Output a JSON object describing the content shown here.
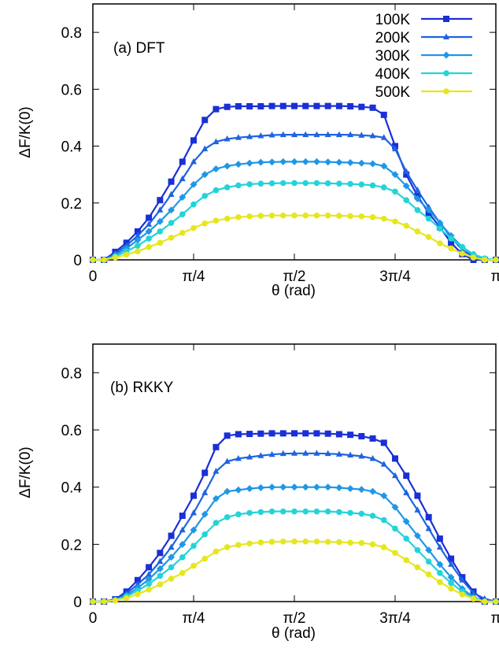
{
  "chart_data": [
    {
      "type": "line",
      "annotation": "(a) DFT",
      "xlabel": "θ (rad)",
      "ylabel": "ΔF/K(0)",
      "xlim": [
        0,
        3.14159
      ],
      "ylim": [
        0,
        0.9
      ],
      "x_ticks": [
        {
          "value": 0,
          "label": "0"
        },
        {
          "value": 0.7854,
          "label": "π/4"
        },
        {
          "value": 1.5708,
          "label": "π/2"
        },
        {
          "value": 2.3562,
          "label": "3π/4"
        },
        {
          "value": 3.1416,
          "label": "π"
        }
      ],
      "y_ticks": [
        {
          "value": 0,
          "label": "0"
        },
        {
          "value": 0.2,
          "label": "0.2"
        },
        {
          "value": 0.4,
          "label": "0.4"
        },
        {
          "value": 0.6,
          "label": "0.6"
        },
        {
          "value": 0.8,
          "label": "0.8"
        }
      ],
      "grid": false,
      "legend_position": "top-right",
      "series": [
        {
          "name": "100K",
          "color": "#1a2fd6",
          "marker": "square",
          "x": [
            0,
            0.0873,
            0.1745,
            0.2618,
            0.3491,
            0.4363,
            0.5236,
            0.6109,
            0.6981,
            0.7854,
            0.8727,
            0.9599,
            1.0472,
            1.1345,
            1.2217,
            1.309,
            1.3963,
            1.4835,
            1.5708,
            1.6581,
            1.7453,
            1.8326,
            1.9199,
            2.0071,
            2.0944,
            2.1817,
            2.2689,
            2.3562,
            2.4435,
            2.5307,
            2.618,
            2.7053,
            2.7925,
            2.8798,
            2.9671,
            3.0543,
            3.1416
          ],
          "y": [
            0,
            0,
            0.028,
            0.06,
            0.1,
            0.148,
            0.21,
            0.275,
            0.345,
            0.42,
            0.492,
            0.53,
            0.538,
            0.54,
            0.54,
            0.54,
            0.541,
            0.541,
            0.541,
            0.541,
            0.541,
            0.541,
            0.541,
            0.54,
            0.538,
            0.535,
            0.51,
            0.4,
            0.3,
            0.225,
            0.165,
            0.115,
            0.06,
            0.02,
            0,
            0,
            0
          ]
        },
        {
          "name": "200K",
          "color": "#1e63e0",
          "marker": "triangle",
          "x": [
            0,
            0.0873,
            0.1745,
            0.2618,
            0.3491,
            0.4363,
            0.5236,
            0.6109,
            0.6981,
            0.7854,
            0.8727,
            0.9599,
            1.0472,
            1.1345,
            1.2217,
            1.309,
            1.3963,
            1.4835,
            1.5708,
            1.6581,
            1.7453,
            1.8326,
            1.9199,
            2.0071,
            2.0944,
            2.1817,
            2.2689,
            2.3562,
            2.4435,
            2.5307,
            2.618,
            2.7053,
            2.7925,
            2.8798,
            2.9671,
            3.0543,
            3.1416
          ],
          "y": [
            0,
            0,
            0.022,
            0.05,
            0.085,
            0.125,
            0.175,
            0.23,
            0.285,
            0.345,
            0.39,
            0.415,
            0.425,
            0.43,
            0.433,
            0.436,
            0.439,
            0.44,
            0.44,
            0.44,
            0.44,
            0.44,
            0.44,
            0.44,
            0.438,
            0.436,
            0.43,
            0.39,
            0.31,
            0.245,
            0.185,
            0.13,
            0.08,
            0.035,
            0.01,
            0,
            0
          ]
        },
        {
          "name": "300K",
          "color": "#1f97e6",
          "marker": "diamond",
          "x": [
            0,
            0.0873,
            0.1745,
            0.2618,
            0.3491,
            0.4363,
            0.5236,
            0.6109,
            0.6981,
            0.7854,
            0.8727,
            0.9599,
            1.0472,
            1.1345,
            1.2217,
            1.309,
            1.3963,
            1.4835,
            1.5708,
            1.6581,
            1.7453,
            1.8326,
            1.9199,
            2.0071,
            2.0944,
            2.1817,
            2.2689,
            2.3562,
            2.4435,
            2.5307,
            2.618,
            2.7053,
            2.7925,
            2.8798,
            2.9671,
            3.0543,
            3.1416
          ],
          "y": [
            0,
            0,
            0.017,
            0.04,
            0.07,
            0.1,
            0.135,
            0.175,
            0.22,
            0.265,
            0.3,
            0.32,
            0.33,
            0.336,
            0.34,
            0.343,
            0.344,
            0.345,
            0.345,
            0.345,
            0.345,
            0.344,
            0.343,
            0.342,
            0.34,
            0.338,
            0.33,
            0.3,
            0.26,
            0.215,
            0.175,
            0.13,
            0.085,
            0.045,
            0.015,
            0,
            0
          ]
        },
        {
          "name": "400K",
          "color": "#24d3d8",
          "marker": "circle",
          "x": [
            0,
            0.0873,
            0.1745,
            0.2618,
            0.3491,
            0.4363,
            0.5236,
            0.6109,
            0.6981,
            0.7854,
            0.8727,
            0.9599,
            1.0472,
            1.1345,
            1.2217,
            1.309,
            1.3963,
            1.4835,
            1.5708,
            1.6581,
            1.7453,
            1.8326,
            1.9199,
            2.0071,
            2.0944,
            2.1817,
            2.2689,
            2.3562,
            2.4435,
            2.5307,
            2.618,
            2.7053,
            2.7925,
            2.8798,
            2.9671,
            3.0543,
            3.1416
          ],
          "y": [
            0,
            0,
            0.012,
            0.03,
            0.05,
            0.075,
            0.1,
            0.13,
            0.16,
            0.195,
            0.225,
            0.245,
            0.255,
            0.262,
            0.266,
            0.268,
            0.269,
            0.27,
            0.27,
            0.27,
            0.27,
            0.269,
            0.268,
            0.267,
            0.265,
            0.262,
            0.255,
            0.24,
            0.21,
            0.175,
            0.145,
            0.11,
            0.075,
            0.045,
            0.02,
            0.005,
            0
          ]
        },
        {
          "name": "500K",
          "color": "#e6e620",
          "marker": "circle",
          "x": [
            0,
            0.0873,
            0.1745,
            0.2618,
            0.3491,
            0.4363,
            0.5236,
            0.6109,
            0.6981,
            0.7854,
            0.8727,
            0.9599,
            1.0472,
            1.1345,
            1.2217,
            1.309,
            1.3963,
            1.4835,
            1.5708,
            1.6581,
            1.7453,
            1.8326,
            1.9199,
            2.0071,
            2.0944,
            2.1817,
            2.2689,
            2.3562,
            2.4435,
            2.5307,
            2.618,
            2.7053,
            2.7925,
            2.8798,
            2.9671,
            3.0543,
            3.1416
          ],
          "y": [
            0,
            0,
            0.008,
            0.018,
            0.03,
            0.045,
            0.06,
            0.078,
            0.095,
            0.112,
            0.128,
            0.138,
            0.145,
            0.15,
            0.153,
            0.155,
            0.156,
            0.156,
            0.156,
            0.156,
            0.156,
            0.156,
            0.155,
            0.154,
            0.153,
            0.15,
            0.145,
            0.135,
            0.12,
            0.1,
            0.08,
            0.058,
            0.04,
            0.022,
            0.008,
            0,
            0
          ]
        }
      ]
    },
    {
      "type": "line",
      "annotation": "(b) RKKY",
      "xlabel": "θ (rad)",
      "ylabel": "ΔF/K(0)",
      "xlim": [
        0,
        3.14159
      ],
      "ylim": [
        0,
        0.9
      ],
      "x_ticks": [
        {
          "value": 0,
          "label": "0"
        },
        {
          "value": 0.7854,
          "label": "π/4"
        },
        {
          "value": 1.5708,
          "label": "π/2"
        },
        {
          "value": 2.3562,
          "label": "3π/4"
        },
        {
          "value": 3.1416,
          "label": "π"
        }
      ],
      "y_ticks": [
        {
          "value": 0,
          "label": "0"
        },
        {
          "value": 0.2,
          "label": "0.2"
        },
        {
          "value": 0.4,
          "label": "0.4"
        },
        {
          "value": 0.6,
          "label": "0.6"
        },
        {
          "value": 0.8,
          "label": "0.8"
        }
      ],
      "grid": false,
      "series": [
        {
          "name": "100K",
          "color": "#1a2fd6",
          "marker": "square",
          "x": [
            0,
            0.0873,
            0.1745,
            0.2618,
            0.3491,
            0.4363,
            0.5236,
            0.6109,
            0.6981,
            0.7854,
            0.8727,
            0.9599,
            1.0472,
            1.1345,
            1.2217,
            1.309,
            1.3963,
            1.4835,
            1.5708,
            1.6581,
            1.7453,
            1.8326,
            1.9199,
            2.0071,
            2.0944,
            2.1817,
            2.2689,
            2.3562,
            2.4435,
            2.5307,
            2.618,
            2.7053,
            2.7925,
            2.8798,
            2.9671,
            3.0543,
            3.1416
          ],
          "y": [
            0,
            0,
            0.008,
            0.035,
            0.075,
            0.12,
            0.17,
            0.23,
            0.3,
            0.37,
            0.45,
            0.54,
            0.58,
            0.585,
            0.586,
            0.587,
            0.588,
            0.588,
            0.588,
            0.588,
            0.588,
            0.587,
            0.585,
            0.583,
            0.578,
            0.57,
            0.555,
            0.5,
            0.44,
            0.37,
            0.295,
            0.22,
            0.15,
            0.085,
            0.035,
            0,
            0
          ]
        },
        {
          "name": "200K",
          "color": "#1e63e0",
          "marker": "triangle",
          "x": [
            0,
            0.0873,
            0.1745,
            0.2618,
            0.3491,
            0.4363,
            0.5236,
            0.6109,
            0.6981,
            0.7854,
            0.8727,
            0.9599,
            1.0472,
            1.1345,
            1.2217,
            1.309,
            1.3963,
            1.4835,
            1.5708,
            1.6581,
            1.7453,
            1.8326,
            1.9199,
            2.0071,
            2.0944,
            2.1817,
            2.2689,
            2.3562,
            2.4435,
            2.5307,
            2.618,
            2.7053,
            2.7925,
            2.8798,
            2.9671,
            3.0543,
            3.1416
          ],
          "y": [
            0,
            0,
            0.007,
            0.028,
            0.06,
            0.095,
            0.14,
            0.19,
            0.25,
            0.31,
            0.38,
            0.455,
            0.49,
            0.5,
            0.505,
            0.51,
            0.514,
            0.517,
            0.518,
            0.518,
            0.518,
            0.517,
            0.515,
            0.512,
            0.508,
            0.5,
            0.48,
            0.44,
            0.38,
            0.32,
            0.255,
            0.19,
            0.13,
            0.075,
            0.03,
            0.01,
            0
          ]
        },
        {
          "name": "300K",
          "color": "#1f97e6",
          "marker": "diamond",
          "x": [
            0,
            0.0873,
            0.1745,
            0.2618,
            0.3491,
            0.4363,
            0.5236,
            0.6109,
            0.6981,
            0.7854,
            0.8727,
            0.9599,
            1.0472,
            1.1345,
            1.2217,
            1.309,
            1.3963,
            1.4835,
            1.5708,
            1.6581,
            1.7453,
            1.8326,
            1.9199,
            2.0071,
            2.0944,
            2.1817,
            2.2689,
            2.3562,
            2.4435,
            2.5307,
            2.618,
            2.7053,
            2.7925,
            2.8798,
            2.9671,
            3.0543,
            3.1416
          ],
          "y": [
            0,
            0,
            0.006,
            0.022,
            0.048,
            0.078,
            0.115,
            0.155,
            0.2,
            0.25,
            0.305,
            0.36,
            0.385,
            0.39,
            0.395,
            0.398,
            0.4,
            0.4,
            0.4,
            0.4,
            0.4,
            0.4,
            0.398,
            0.395,
            0.392,
            0.385,
            0.37,
            0.33,
            0.28,
            0.23,
            0.18,
            0.13,
            0.085,
            0.045,
            0.015,
            0,
            0
          ]
        },
        {
          "name": "400K",
          "color": "#24d3d8",
          "marker": "circle",
          "x": [
            0,
            0.0873,
            0.1745,
            0.2618,
            0.3491,
            0.4363,
            0.5236,
            0.6109,
            0.6981,
            0.7854,
            0.8727,
            0.9599,
            1.0472,
            1.1345,
            1.2217,
            1.309,
            1.3963,
            1.4835,
            1.5708,
            1.6581,
            1.7453,
            1.8326,
            1.9199,
            2.0071,
            2.0944,
            2.1817,
            2.2689,
            2.3562,
            2.4435,
            2.5307,
            2.618,
            2.7053,
            2.7925,
            2.8798,
            2.9671,
            3.0543,
            3.1416
          ],
          "y": [
            0,
            0,
            0.005,
            0.018,
            0.038,
            0.062,
            0.09,
            0.12,
            0.155,
            0.195,
            0.235,
            0.275,
            0.295,
            0.305,
            0.31,
            0.313,
            0.315,
            0.315,
            0.315,
            0.315,
            0.315,
            0.315,
            0.313,
            0.31,
            0.307,
            0.3,
            0.285,
            0.255,
            0.22,
            0.18,
            0.14,
            0.1,
            0.065,
            0.035,
            0.012,
            0,
            0
          ]
        },
        {
          "name": "500K",
          "color": "#e6e620",
          "marker": "circle",
          "x": [
            0,
            0.0873,
            0.1745,
            0.2618,
            0.3491,
            0.4363,
            0.5236,
            0.6109,
            0.6981,
            0.7854,
            0.8727,
            0.9599,
            1.0472,
            1.1345,
            1.2217,
            1.309,
            1.3963,
            1.4835,
            1.5708,
            1.6581,
            1.7453,
            1.8326,
            1.9199,
            2.0071,
            2.0944,
            2.1817,
            2.2689,
            2.3562,
            2.4435,
            2.5307,
            2.618,
            2.7053,
            2.7925,
            2.8798,
            2.9671,
            3.0543,
            3.1416
          ],
          "y": [
            0,
            0,
            0.004,
            0.012,
            0.026,
            0.042,
            0.06,
            0.08,
            0.1,
            0.125,
            0.15,
            0.175,
            0.19,
            0.198,
            0.203,
            0.207,
            0.209,
            0.21,
            0.21,
            0.21,
            0.21,
            0.209,
            0.208,
            0.206,
            0.205,
            0.2,
            0.19,
            0.17,
            0.145,
            0.12,
            0.095,
            0.068,
            0.045,
            0.025,
            0.01,
            0,
            0
          ]
        }
      ]
    }
  ]
}
